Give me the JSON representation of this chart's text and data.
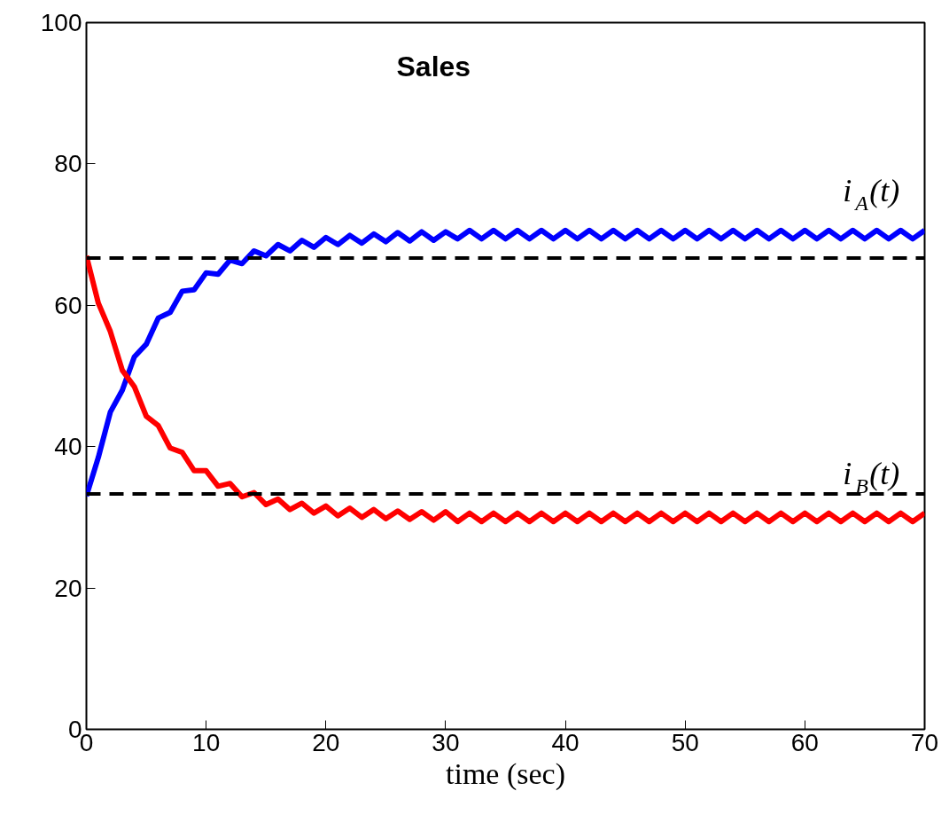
{
  "chart_data": {
    "type": "line",
    "title": "Sales",
    "xlabel": "time (sec)",
    "x": [
      0,
      1,
      2,
      3,
      4,
      5,
      6,
      7,
      8,
      9,
      10,
      11,
      12,
      13,
      14,
      15,
      16,
      17,
      18,
      19,
      20,
      21,
      22,
      23,
      24,
      25,
      26,
      27,
      28,
      29,
      30,
      31,
      32,
      33,
      34,
      35,
      36,
      37,
      38,
      39,
      40,
      41,
      42,
      43,
      44,
      45,
      46,
      47,
      48,
      49,
      50,
      51,
      52,
      53,
      54,
      55,
      56,
      57,
      58,
      59,
      60,
      61,
      62,
      63,
      64,
      65,
      66,
      67,
      68,
      69,
      70
    ],
    "series": [
      {
        "name": "i$_{A}$(t)",
        "color": "#0000ff",
        "values": [
          33,
          38.5,
          44.9,
          48.0,
          52.7,
          54.5,
          58.2,
          59.0,
          62.0,
          62.2,
          64.6,
          64.4,
          66.4,
          65.9,
          67.7,
          67.0,
          68.6,
          67.7,
          69.2,
          68.2,
          69.6,
          68.6,
          69.9,
          68.8,
          70.1,
          69.0,
          70.3,
          69.1,
          70.4,
          69.2,
          70.4,
          69.4,
          70.6,
          69.4,
          70.6,
          69.4,
          70.6,
          69.4,
          70.6,
          69.4,
          70.6,
          69.4,
          70.6,
          69.4,
          70.6,
          69.4,
          70.6,
          69.4,
          70.6,
          69.4,
          70.6,
          69.4,
          70.6,
          69.4,
          70.6,
          69.4,
          70.6,
          69.4,
          70.6,
          69.4,
          70.6,
          69.4,
          70.6,
          69.4,
          70.6,
          69.4,
          70.6,
          69.4,
          70.6,
          69.4,
          70.6
        ]
      },
      {
        "name": "i$_{B}$(t)",
        "color": "#ff0000",
        "values": [
          67,
          60.3,
          56.3,
          50.8,
          48.5,
          44.3,
          43.0,
          39.8,
          39.2,
          36.6,
          36.6,
          34.4,
          34.8,
          32.9,
          33.5,
          31.8,
          32.6,
          31.1,
          32.0,
          30.6,
          31.6,
          30.2,
          31.3,
          30.0,
          31.1,
          29.8,
          30.9,
          29.7,
          30.8,
          29.6,
          30.8,
          29.4,
          30.6,
          29.4,
          30.6,
          29.4,
          30.6,
          29.4,
          30.6,
          29.4,
          30.6,
          29.4,
          30.6,
          29.4,
          30.6,
          29.4,
          30.6,
          29.4,
          30.6,
          29.4,
          30.6,
          29.4,
          30.6,
          29.4,
          30.6,
          29.4,
          30.6,
          29.4,
          30.6,
          29.4,
          30.6,
          29.4,
          30.6,
          29.4,
          30.6,
          29.4,
          30.6,
          29.4,
          30.6,
          29.4,
          30.6
        ]
      }
    ],
    "ref_lines": [
      {
        "axis": "y",
        "value": 66.7,
        "color": "#000000",
        "line_style": "dashed"
      },
      {
        "axis": "y",
        "value": 33.3,
        "color": "#000000",
        "line_style": "dashed"
      }
    ],
    "xlim": [
      0,
      70
    ],
    "ylim": [
      0,
      100
    ],
    "xticks": [
      0,
      10,
      20,
      30,
      40,
      50,
      60,
      70
    ],
    "yticks": [
      0,
      20,
      40,
      60,
      80,
      100
    ],
    "grid": false,
    "marker": "none",
    "line_style": "solid"
  }
}
